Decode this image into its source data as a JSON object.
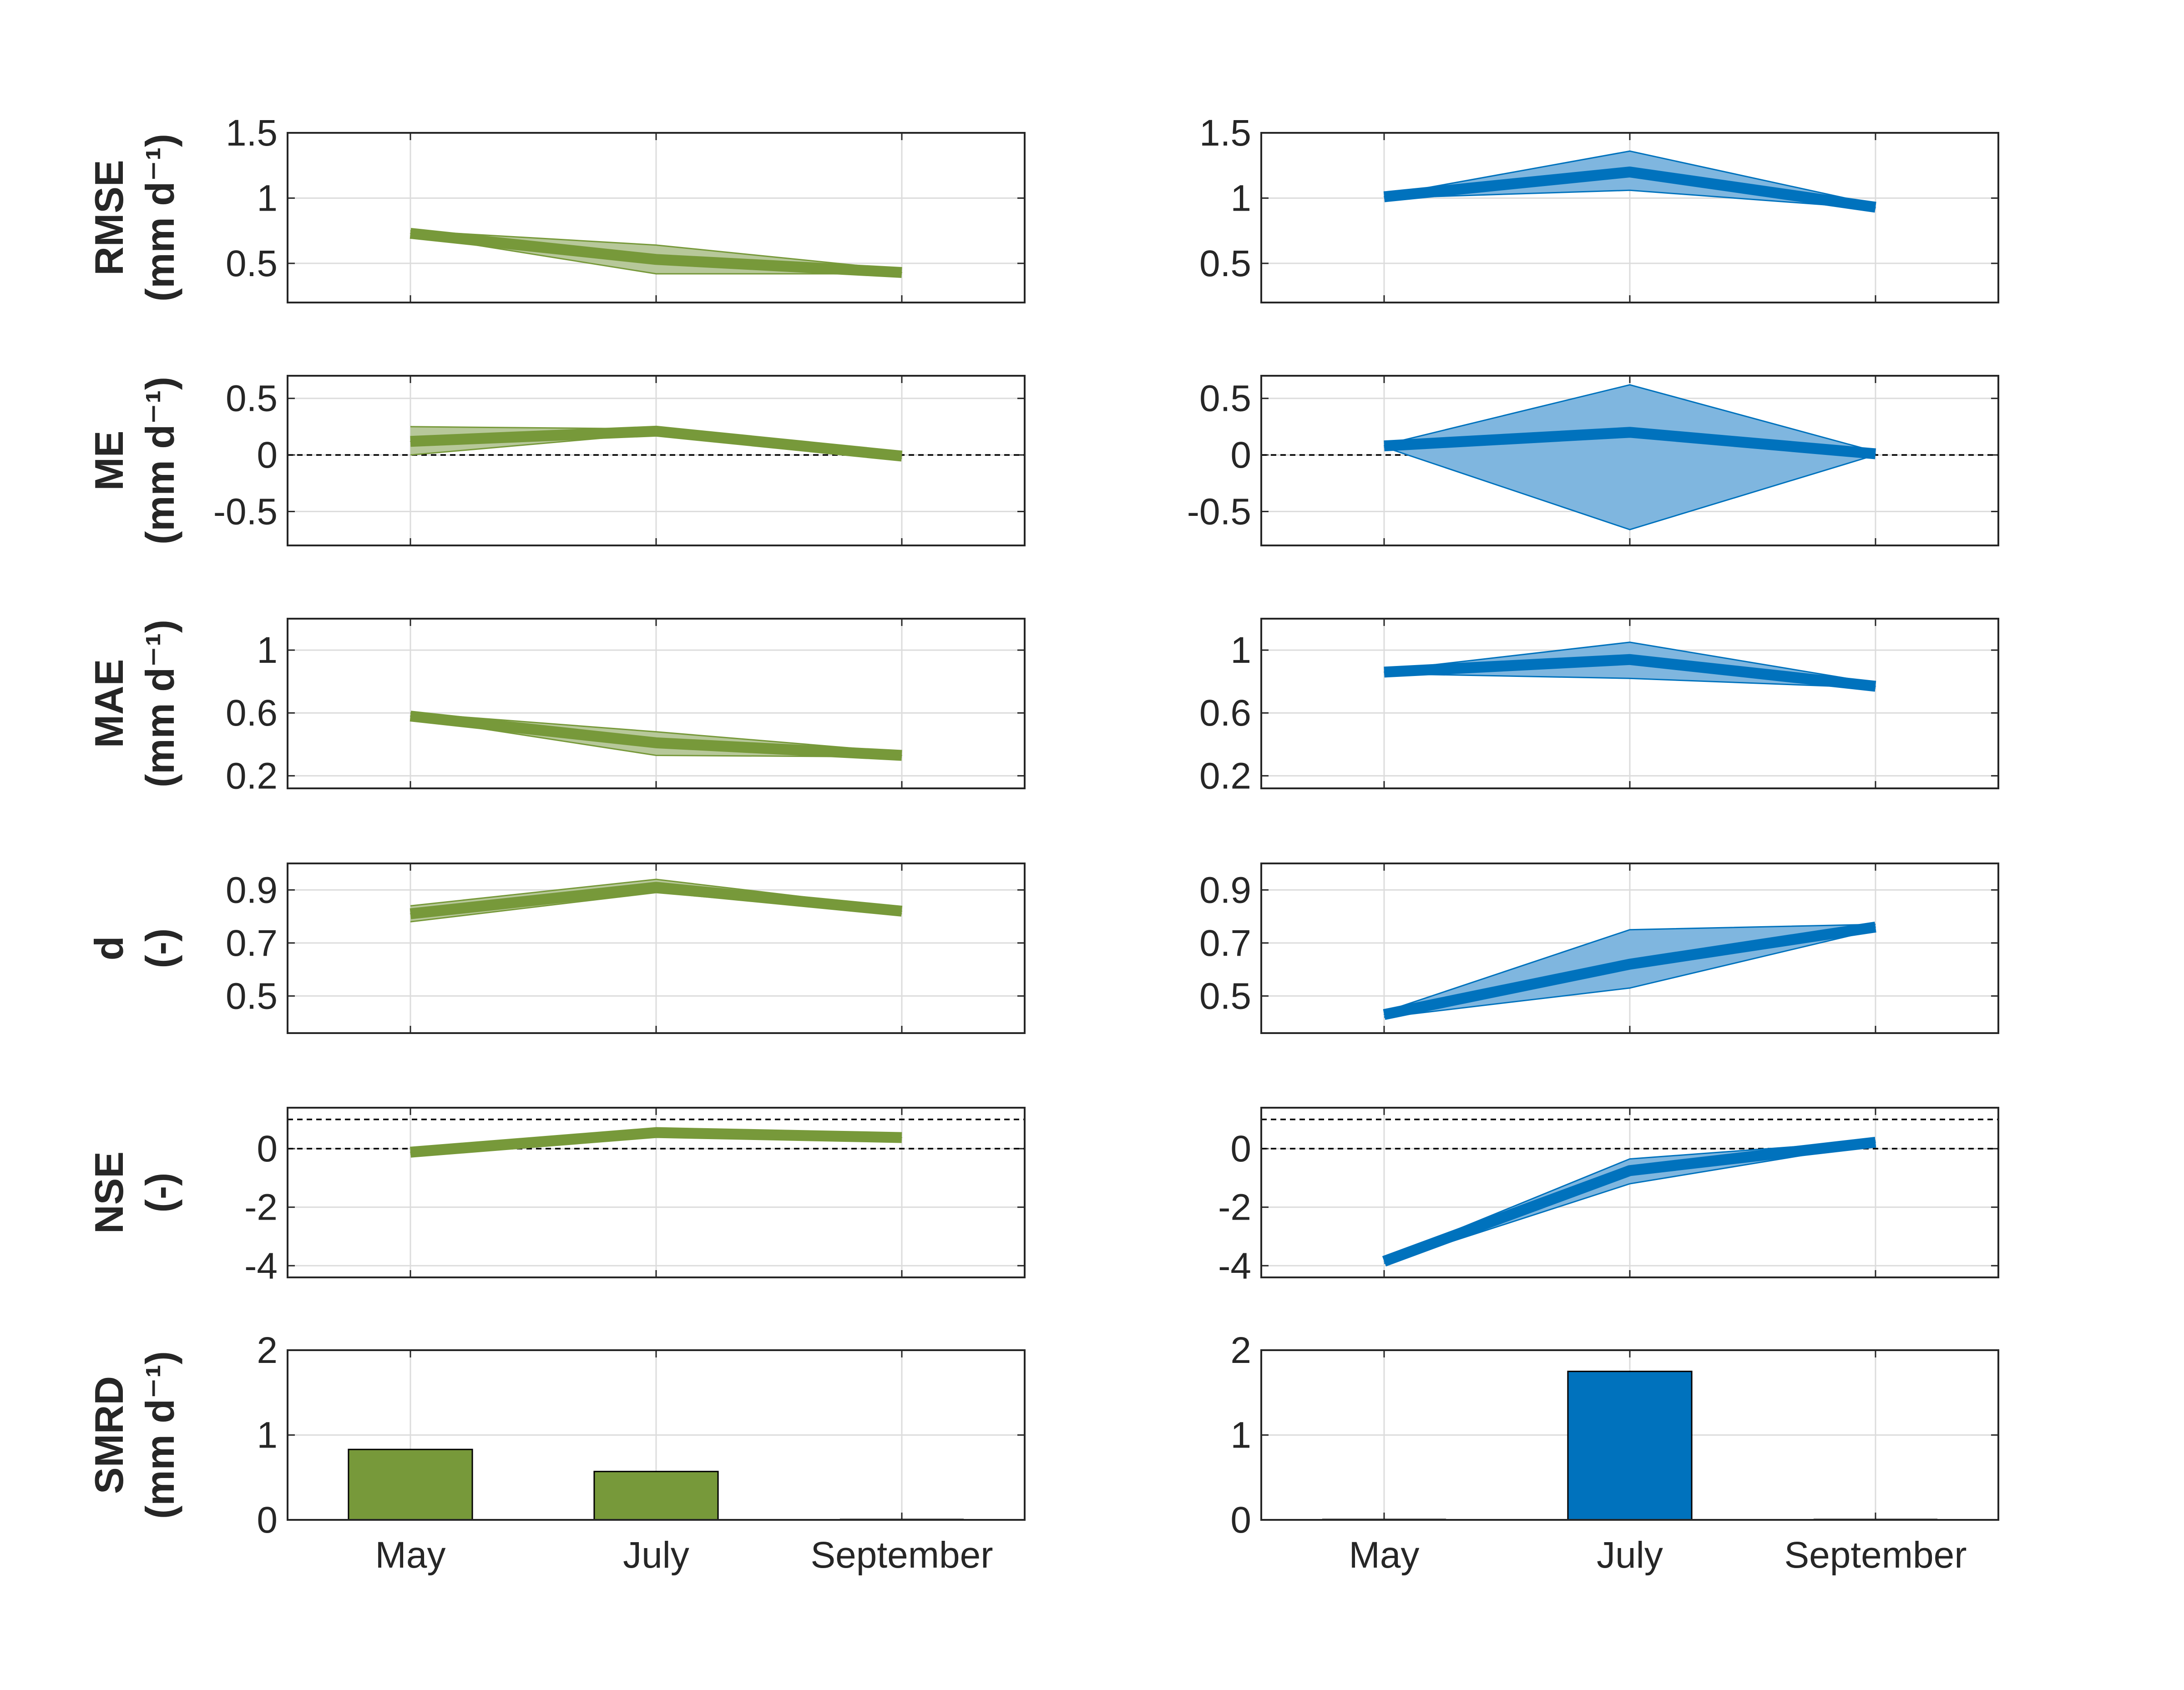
{
  "figure": {
    "x_categories": [
      "May",
      "July",
      "September"
    ],
    "colors": {
      "green_line": "#77993a",
      "green_fill": "#b7c89a",
      "blue_line": "#0072bd",
      "blue_fill": "#7fb6df",
      "axis": "#262626",
      "grid": "#dcdcdc"
    }
  },
  "chart_data": [
    {
      "type": "line",
      "row": 1,
      "col": 1,
      "color": "green",
      "ylabel": [
        "RMSE",
        "(mm d⁻¹)"
      ],
      "ylim": [
        0.2,
        1.5
      ],
      "yticks": [
        "0.5",
        "1",
        "1.5"
      ],
      "categories": [
        "May",
        "July",
        "September"
      ],
      "mean": [
        0.73,
        0.53,
        0.43
      ],
      "lower": [
        0.72,
        0.42,
        0.42
      ],
      "upper": [
        0.75,
        0.64,
        0.45
      ]
    },
    {
      "type": "line",
      "row": 1,
      "col": 2,
      "color": "blue",
      "ylabel": [],
      "ylim": [
        0.2,
        1.5
      ],
      "yticks": [
        "0.5",
        "1",
        "1.5"
      ],
      "categories": [
        "May",
        "July",
        "September"
      ],
      "mean": [
        1.01,
        1.2,
        0.93
      ],
      "lower": [
        1.0,
        1.06,
        0.92
      ],
      "upper": [
        1.02,
        1.36,
        0.95
      ]
    },
    {
      "type": "line",
      "row": 2,
      "col": 1,
      "color": "green",
      "hlines": [
        0
      ],
      "ylabel": [
        "ME",
        "(mm d⁻¹)"
      ],
      "ylim": [
        -0.8,
        0.7
      ],
      "yticks": [
        "-0.5",
        "0",
        "0.5"
      ],
      "categories": [
        "May",
        "July",
        "September"
      ],
      "mean": [
        0.12,
        0.21,
        -0.01
      ],
      "lower": [
        0.0,
        0.19,
        -0.03
      ],
      "upper": [
        0.25,
        0.23,
        0.01
      ]
    },
    {
      "type": "line",
      "row": 2,
      "col": 2,
      "color": "blue",
      "hlines": [
        0
      ],
      "ylabel": [],
      "ylim": [
        -0.8,
        0.7
      ],
      "yticks": [
        "-0.5",
        "0",
        "0.5"
      ],
      "categories": [
        "May",
        "July",
        "September"
      ],
      "mean": [
        0.08,
        0.2,
        0.01
      ],
      "lower": [
        0.07,
        -0.66,
        0.0
      ],
      "upper": [
        0.09,
        0.62,
        0.03
      ]
    },
    {
      "type": "line",
      "row": 3,
      "col": 1,
      "color": "green",
      "ylabel": [
        "MAE",
        "(mm d⁻¹)"
      ],
      "ylim": [
        0.12,
        1.2
      ],
      "yticks": [
        "0.2",
        "0.6",
        "1"
      ],
      "categories": [
        "May",
        "July",
        "September"
      ],
      "mean": [
        0.58,
        0.41,
        0.33
      ],
      "lower": [
        0.57,
        0.33,
        0.32
      ],
      "upper": [
        0.6,
        0.48,
        0.35
      ]
    },
    {
      "type": "line",
      "row": 3,
      "col": 2,
      "color": "blue",
      "ylabel": [],
      "ylim": [
        0.12,
        1.2
      ],
      "yticks": [
        "0.2",
        "0.6",
        "1"
      ],
      "categories": [
        "May",
        "July",
        "September"
      ],
      "mean": [
        0.86,
        0.94,
        0.77
      ],
      "lower": [
        0.85,
        0.82,
        0.76
      ],
      "upper": [
        0.87,
        1.05,
        0.79
      ]
    },
    {
      "type": "line",
      "row": 4,
      "col": 1,
      "color": "green",
      "ylabel": [
        "d",
        "(-)"
      ],
      "ylim": [
        0.36,
        1.0
      ],
      "yticks": [
        "0.5",
        "0.7",
        "0.9"
      ],
      "categories": [
        "May",
        "July",
        "September"
      ],
      "mean": [
        0.81,
        0.91,
        0.82
      ],
      "lower": [
        0.78,
        0.89,
        0.81
      ],
      "upper": [
        0.84,
        0.94,
        0.83
      ]
    },
    {
      "type": "line",
      "row": 4,
      "col": 2,
      "color": "blue",
      "ylabel": [],
      "ylim": [
        0.36,
        1.0
      ],
      "yticks": [
        "0.5",
        "0.7",
        "0.9"
      ],
      "categories": [
        "May",
        "July",
        "September"
      ],
      "mean": [
        0.43,
        0.62,
        0.76
      ],
      "lower": [
        0.42,
        0.53,
        0.75
      ],
      "upper": [
        0.44,
        0.75,
        0.77
      ]
    },
    {
      "type": "line",
      "row": 5,
      "col": 1,
      "color": "green",
      "hlines": [
        0,
        1
      ],
      "ylabel": [
        "NSE",
        "(-)"
      ],
      "ylim": [
        -4.4,
        1.4
      ],
      "yticks": [
        "-4",
        "-2",
        "0"
      ],
      "categories": [
        "May",
        "July",
        "September"
      ],
      "mean": [
        -0.12,
        0.55,
        0.38
      ],
      "lower": [
        -0.18,
        0.4,
        0.3
      ],
      "upper": [
        -0.06,
        0.7,
        0.45
      ]
    },
    {
      "type": "line",
      "row": 5,
      "col": 2,
      "color": "blue",
      "hlines": [
        0,
        1
      ],
      "ylabel": [],
      "ylim": [
        -4.4,
        1.4
      ],
      "yticks": [
        "-4",
        "-2",
        "0"
      ],
      "categories": [
        "May",
        "July",
        "September"
      ],
      "mean": [
        -3.85,
        -0.75,
        0.22
      ],
      "lower": [
        -3.92,
        -1.2,
        0.18
      ],
      "upper": [
        -3.78,
        -0.35,
        0.27
      ]
    },
    {
      "type": "bar",
      "row": 6,
      "col": 1,
      "color": "green",
      "ylabel": [
        "SMRD",
        "(mm d⁻¹)"
      ],
      "ylim": [
        0,
        2
      ],
      "yticks": [
        "0",
        "1",
        "2"
      ],
      "categories": [
        "May",
        "July",
        "September"
      ],
      "values": [
        0.83,
        0.57,
        0.0
      ]
    },
    {
      "type": "bar",
      "row": 6,
      "col": 2,
      "color": "blue",
      "ylabel": [],
      "ylim": [
        0,
        2
      ],
      "yticks": [
        "0",
        "1",
        "2"
      ],
      "categories": [
        "May",
        "July",
        "September"
      ],
      "values": [
        0.0,
        1.75,
        0.0
      ]
    }
  ]
}
